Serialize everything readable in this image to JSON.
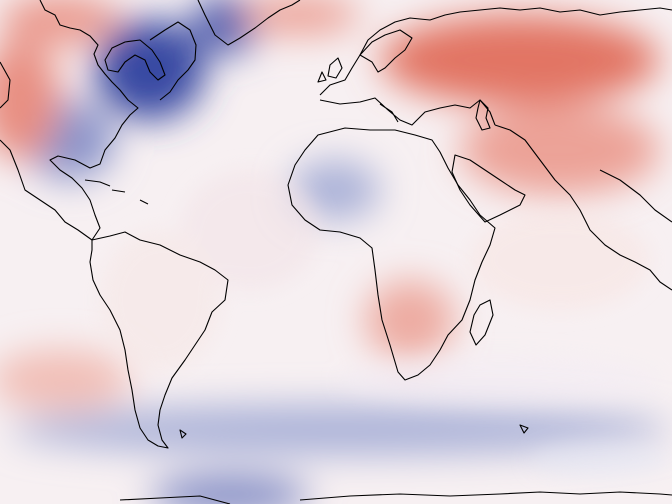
{
  "map": {
    "type": "temperature-anomaly-field",
    "projection": "equirectangular",
    "colormap": {
      "negative": "#2e3f9e",
      "neutral": "#ffffff",
      "positive": "#d8452f"
    },
    "coastline_color": "#000000",
    "regions": [
      {
        "name": "northeast-north-america-cold",
        "sign": "negative",
        "strength": 0.95
      },
      {
        "name": "greenland-labrador-cold",
        "sign": "negative",
        "strength": 0.8
      },
      {
        "name": "us-east-coast-cold",
        "sign": "negative",
        "strength": 0.55
      },
      {
        "name": "alaska-warm",
        "sign": "positive",
        "strength": 0.6
      },
      {
        "name": "west-canada-warm",
        "sign": "positive",
        "strength": 0.55
      },
      {
        "name": "arctic-siberia-warm",
        "sign": "positive",
        "strength": 0.5
      },
      {
        "name": "scandinavia-russia-warm",
        "sign": "positive",
        "strength": 0.75
      },
      {
        "name": "central-asia-warm",
        "sign": "positive",
        "strength": 0.5
      },
      {
        "name": "sahara-cold",
        "sign": "negative",
        "strength": 0.4
      },
      {
        "name": "southern-africa-warm",
        "sign": "positive",
        "strength": 0.45
      },
      {
        "name": "south-pacific-warm",
        "sign": "positive",
        "strength": 0.35
      },
      {
        "name": "southern-ocean-cold",
        "sign": "negative",
        "strength": 0.4
      },
      {
        "name": "antarctic-cold",
        "sign": "negative",
        "strength": 0.6
      }
    ]
  }
}
